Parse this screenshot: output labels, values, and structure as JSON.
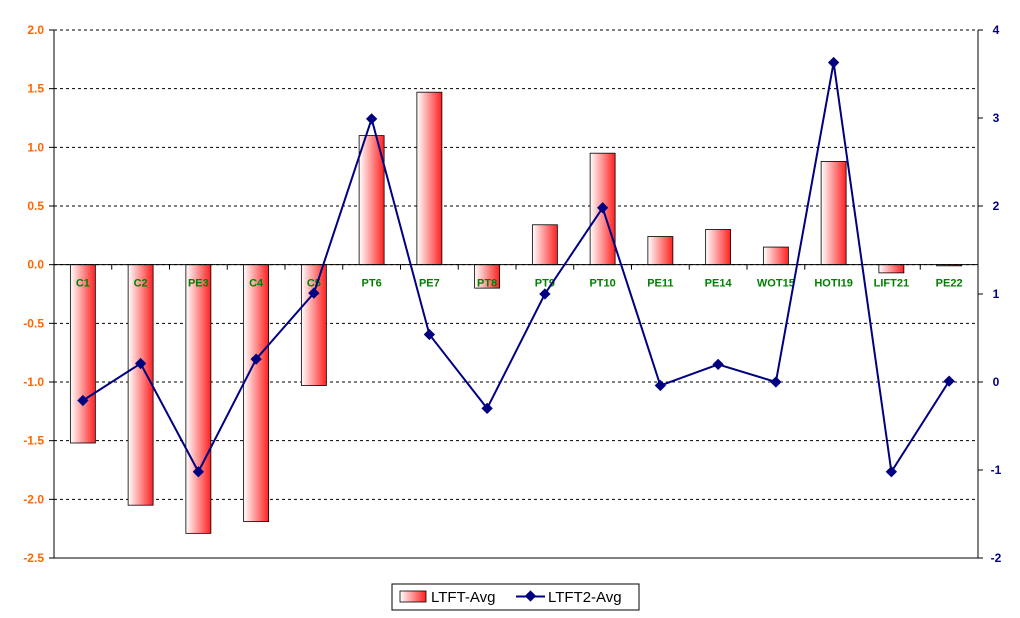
{
  "chart_data": {
    "type": "bar",
    "categories": [
      "C1",
      "C2",
      "PE3",
      "C4",
      "C5",
      "PT6",
      "PE7",
      "PT8",
      "PT9",
      "PT10",
      "PE11",
      "PE14",
      "WOT15",
      "HOTI19",
      "LIFT21",
      "PE22"
    ],
    "series": [
      {
        "name": "LTFT-Avg",
        "type": "bar",
        "axis": "left",
        "values": [
          -1.52,
          -2.05,
          -2.29,
          -2.19,
          -1.03,
          1.1,
          1.47,
          -0.2,
          0.34,
          0.95,
          0.24,
          0.3,
          0.15,
          0.88,
          -0.07,
          -0.01
        ]
      },
      {
        "name": "LTFT2-Avg",
        "type": "line",
        "axis": "right",
        "values": [
          -0.21,
          0.21,
          -1.02,
          0.26,
          1.01,
          2.99,
          0.54,
          -0.3,
          1.0,
          1.98,
          -0.04,
          0.2,
          0.0,
          3.63,
          -1.02,
          0.01
        ]
      }
    ],
    "left_axis": {
      "ylim": [
        -2.5,
        2.0
      ],
      "ticks": [
        "2.0",
        "1.5",
        "1.0",
        "0.5",
        "0.0",
        "-0.5",
        "-1.0",
        "-1.5",
        "-2.0",
        "-2.5"
      ],
      "tick_values": [
        2.0,
        1.5,
        1.0,
        0.5,
        0.0,
        -0.5,
        -1.0,
        -1.5,
        -2.0,
        -2.5
      ]
    },
    "right_axis": {
      "ylim": [
        -2,
        4
      ],
      "ticks": [
        "4",
        "3",
        "2",
        "1",
        "0",
        "-1",
        "-2"
      ],
      "tick_values": [
        4,
        3,
        2,
        1,
        0,
        -1,
        -2
      ]
    },
    "grid": true,
    "legend": "bottom",
    "colors": {
      "bar_light": "#ffffff",
      "bar_dark": "#ff2020",
      "line": "#000080",
      "left_tick": "#ff6600",
      "right_tick": "#000080",
      "category": "#008000"
    }
  }
}
